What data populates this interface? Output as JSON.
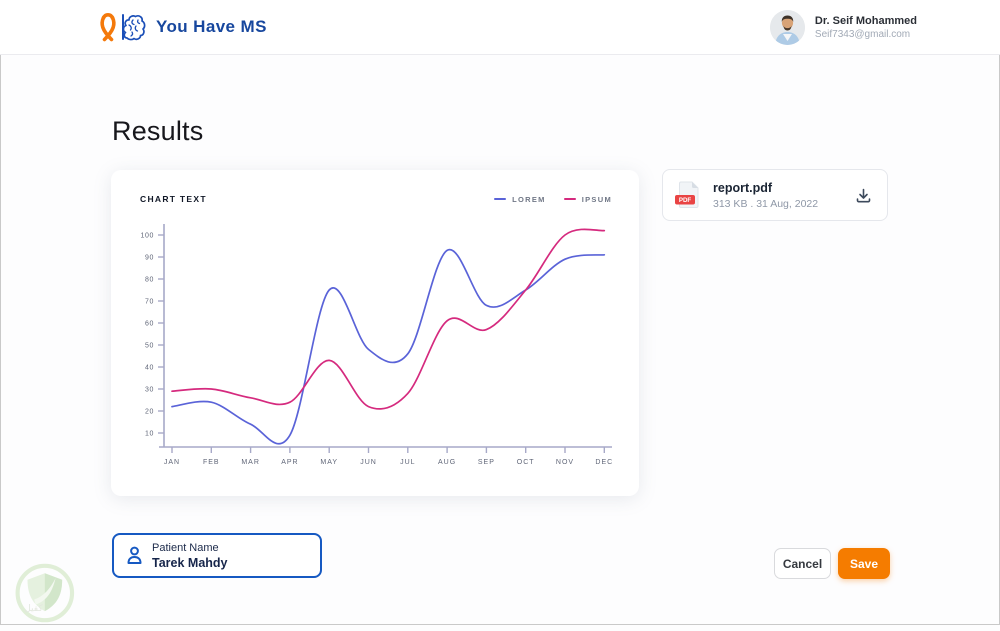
{
  "header": {
    "brand": "You Have MS",
    "user": {
      "name": "Dr. Seif Mohammed",
      "email": "Seif7343@gmail.com"
    }
  },
  "page": {
    "title": "Results"
  },
  "chart_data": {
    "type": "line",
    "title": "CHART TEXT",
    "categories": [
      "JAN",
      "FEB",
      "MAR",
      "APR",
      "MAY",
      "JUN",
      "JUL",
      "AUG",
      "SEP",
      "OCT",
      "NOV",
      "DEC"
    ],
    "series": [
      {
        "name": "LOREM",
        "color": "#5A63D8",
        "values": [
          22,
          24,
          14,
          9,
          75,
          48,
          46,
          93,
          68,
          75,
          89,
          91
        ]
      },
      {
        "name": "IPSUM",
        "color": "#D52A7E",
        "values": [
          29,
          30,
          26,
          24,
          43,
          22,
          28,
          61,
          57,
          75,
          100,
          102
        ]
      }
    ],
    "yticks": [
      10,
      20,
      30,
      40,
      50,
      60,
      70,
      80,
      90,
      100
    ],
    "ylim": [
      0,
      105
    ],
    "grid": false,
    "legend_position": "top-right",
    "axis_color": "#a7a9c8",
    "tick_label_color": "#5f6577"
  },
  "file_card": {
    "name": "report.pdf",
    "meta": "313 KB . 31 Aug, 2022",
    "badge": "PDF"
  },
  "patient": {
    "label": "Patient Name",
    "value": "Tarek Mahdy"
  },
  "actions": {
    "cancel": "Cancel",
    "save": "Save"
  },
  "watermark": {
    "text": "كفيل"
  },
  "colors": {
    "brand_blue": "#17479E",
    "accent_orange": "#F57C00",
    "patient_border_blue": "#1659C2",
    "pdf_badge_red": "#E94444",
    "line_lorem": "#5A63D8",
    "line_ipsum": "#D52A7E"
  }
}
